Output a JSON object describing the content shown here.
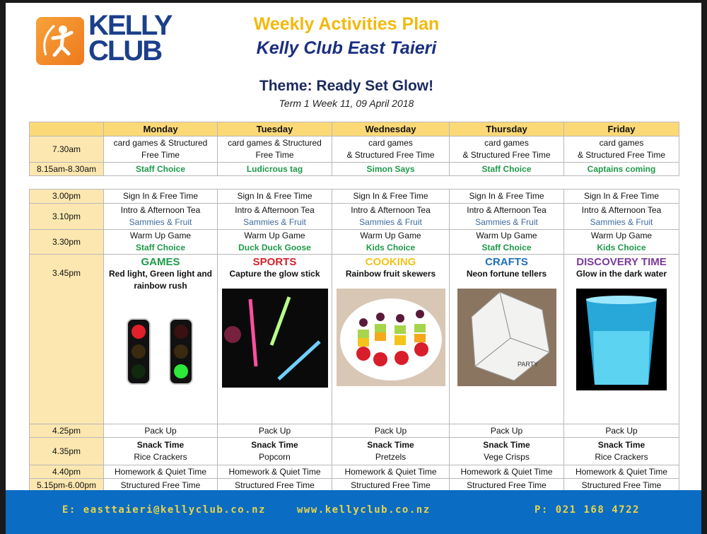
{
  "header": {
    "logo_text": "KELLY CLUB",
    "title": "Weekly Activities Plan",
    "subtitle": "Kelly Club East Taieri",
    "theme": "Theme: Ready Set Glow!",
    "date": "Term 1 Week 11, 09 April 2018"
  },
  "days": [
    "Monday",
    "Tuesday",
    "Wednesday",
    "Thursday",
    "Friday"
  ],
  "morning": [
    {
      "time": "7.30am",
      "cells": [
        [
          "card games & Structured",
          "Free Time"
        ],
        [
          "card games & Structured",
          "Free Time"
        ],
        [
          "card games",
          "& Structured Free Time"
        ],
        [
          "card games",
          "& Structured Free Time"
        ],
        [
          "card games",
          "& Structured Free Time"
        ]
      ]
    },
    {
      "time": "8.15am-8.30am",
      "style": "green",
      "cells": [
        [
          "Staff Choice"
        ],
        [
          "Ludicrous tag"
        ],
        [
          "Simon Says"
        ],
        [
          "Staff Choice"
        ],
        [
          "Captains coming"
        ]
      ]
    }
  ],
  "afternoon_before": [
    {
      "time": "3.00pm",
      "cells": [
        [
          "Sign In & Free Time"
        ],
        [
          "Sign In & Free Time"
        ],
        [
          "Sign In & Free Time"
        ],
        [
          "Sign In & Free Time"
        ],
        [
          "Sign In & Free Time"
        ]
      ]
    },
    {
      "time": "3.10pm",
      "second": "blue",
      "cells": [
        [
          "Intro & Afternoon Tea",
          "Sammies & Fruit"
        ],
        [
          "Intro & Afternoon Tea",
          "Sammies & Fruit"
        ],
        [
          "Intro & Afternoon Tea",
          "Sammies & Fruit"
        ],
        [
          "Intro & Afternoon Tea",
          "Sammies & Fruit"
        ],
        [
          "Intro & Afternoon Tea",
          "Sammies & Fruit"
        ]
      ]
    },
    {
      "time": "3.30pm",
      "second": "green",
      "cells": [
        [
          "Warm Up Game",
          "Staff Choice"
        ],
        [
          "Warm Up Game",
          "Duck Duck Goose"
        ],
        [
          "Warm Up Game",
          "Kids Choice"
        ],
        [
          "Warm Up Game",
          "Staff Choice"
        ],
        [
          "Warm Up Game",
          "Kids Choice"
        ]
      ]
    }
  ],
  "activities": {
    "time": "3.45pm",
    "items": [
      {
        "category": "GAMES",
        "color": "#1e9a48",
        "activity": "Red light, Green light and rainbow rush",
        "image": "traffic-lights"
      },
      {
        "category": "SPORTS",
        "color": "#d4202a",
        "activity": "Capture the glow stick",
        "image": "glow-sticks"
      },
      {
        "category": "COOKING",
        "color": "#f2c21b",
        "activity": "Rainbow fruit skewers",
        "image": "fruit-skewers"
      },
      {
        "category": "CRAFTS",
        "color": "#1f6fb5",
        "activity": "Neon fortune tellers",
        "image": "fortune-teller"
      },
      {
        "category": "DISCOVERY TIME",
        "color": "#7a3a9a",
        "activity": "Glow in the dark water",
        "image": "glowing-cup"
      }
    ]
  },
  "afternoon_after": [
    {
      "time": "4.25pm",
      "cells": [
        [
          "Pack Up"
        ],
        [
          "Pack Up"
        ],
        [
          "Pack Up"
        ],
        [
          "Pack Up"
        ],
        [
          "Pack Up"
        ]
      ]
    },
    {
      "time": "4.35pm",
      "first": "bold",
      "cells": [
        [
          "Snack Time",
          "Rice Crackers"
        ],
        [
          "Snack Time",
          "Popcorn"
        ],
        [
          "Snack Time",
          "Pretzels"
        ],
        [
          "Snack Time",
          "Vege Crisps"
        ],
        [
          "Snack Time",
          "Rice Crackers"
        ]
      ]
    },
    {
      "time": "4.40pm",
      "cells": [
        [
          "Homework & Quiet Time"
        ],
        [
          "Homework & Quiet Time"
        ],
        [
          "Homework & Quiet Time"
        ],
        [
          "Homework & Quiet Time"
        ],
        [
          "Homework & Quiet Time"
        ]
      ]
    },
    {
      "time": "5.15pm-6.00pm",
      "cells": [
        [
          "Structured Free Time"
        ],
        [
          "Structured Free Time"
        ],
        [
          "Structured Free Time"
        ],
        [
          "Structured Free Time"
        ],
        [
          "Structured Free Time"
        ]
      ]
    }
  ],
  "footer": {
    "email": "E: easttaieri@kellyclub.co.nz",
    "website": "www.kellyclub.co.nz",
    "phone": "P: 021 168 4722"
  },
  "colors": {
    "header_row": "#fcd977",
    "time_col": "#fce7b0",
    "footer": "#0a6cc2",
    "title": "#f2b90f",
    "subtitle": "#1b2f80"
  }
}
